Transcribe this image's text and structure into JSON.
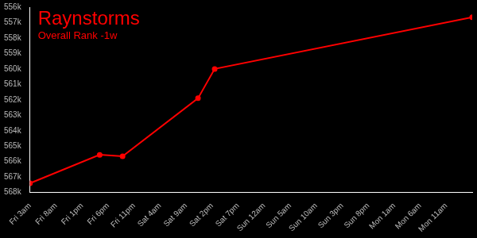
{
  "chart_data": {
    "type": "line",
    "title": "Raynstorms",
    "subtitle": "Overall Rank -1w",
    "x": [
      0,
      13.4,
      17.8,
      32.3,
      35.5,
      85
    ],
    "values": [
      567400,
      565560,
      565660,
      561900,
      560000,
      556660
    ],
    "color": "#ff0000",
    "marker": "circle",
    "line_style": "solid",
    "grid": false,
    "xlim": [
      0,
      85
    ],
    "xticks": [
      {
        "value": 0,
        "label": "Fri 3am"
      },
      {
        "value": 5,
        "label": "Fri 8am"
      },
      {
        "value": 10,
        "label": "Fri 1pm"
      },
      {
        "value": 15,
        "label": "Fri 6pm"
      },
      {
        "value": 20,
        "label": "Fri 11pm"
      },
      {
        "value": 25,
        "label": "Sat 4am"
      },
      {
        "value": 30,
        "label": "Sat 9am"
      },
      {
        "value": 35,
        "label": "Sat 2pm"
      },
      {
        "value": 40,
        "label": "Sat 7pm"
      },
      {
        "value": 45,
        "label": "Sun 12am"
      },
      {
        "value": 50,
        "label": "Sun 5am"
      },
      {
        "value": 55,
        "label": "Sun 10am"
      },
      {
        "value": 60,
        "label": "Sun 3pm"
      },
      {
        "value": 65,
        "label": "Sun 8pm"
      },
      {
        "value": 70,
        "label": "Mon 1am"
      },
      {
        "value": 75,
        "label": "Mon 6am"
      },
      {
        "value": 80,
        "label": "Mon 11am"
      }
    ],
    "ylim": [
      556000,
      568000
    ],
    "yticks": [
      {
        "value": 556000,
        "label": "556k"
      },
      {
        "value": 557000,
        "label": "557k"
      },
      {
        "value": 558000,
        "label": "558k"
      },
      {
        "value": 559000,
        "label": "559k"
      },
      {
        "value": 560000,
        "label": "560k"
      },
      {
        "value": 561000,
        "label": "561k"
      },
      {
        "value": 562000,
        "label": "562k"
      },
      {
        "value": 563000,
        "label": "563k"
      },
      {
        "value": 564000,
        "label": "564k"
      },
      {
        "value": 565000,
        "label": "565k"
      },
      {
        "value": 566000,
        "label": "566k"
      },
      {
        "value": 567000,
        "label": "567k"
      },
      {
        "value": 568000,
        "label": "568k"
      }
    ]
  }
}
